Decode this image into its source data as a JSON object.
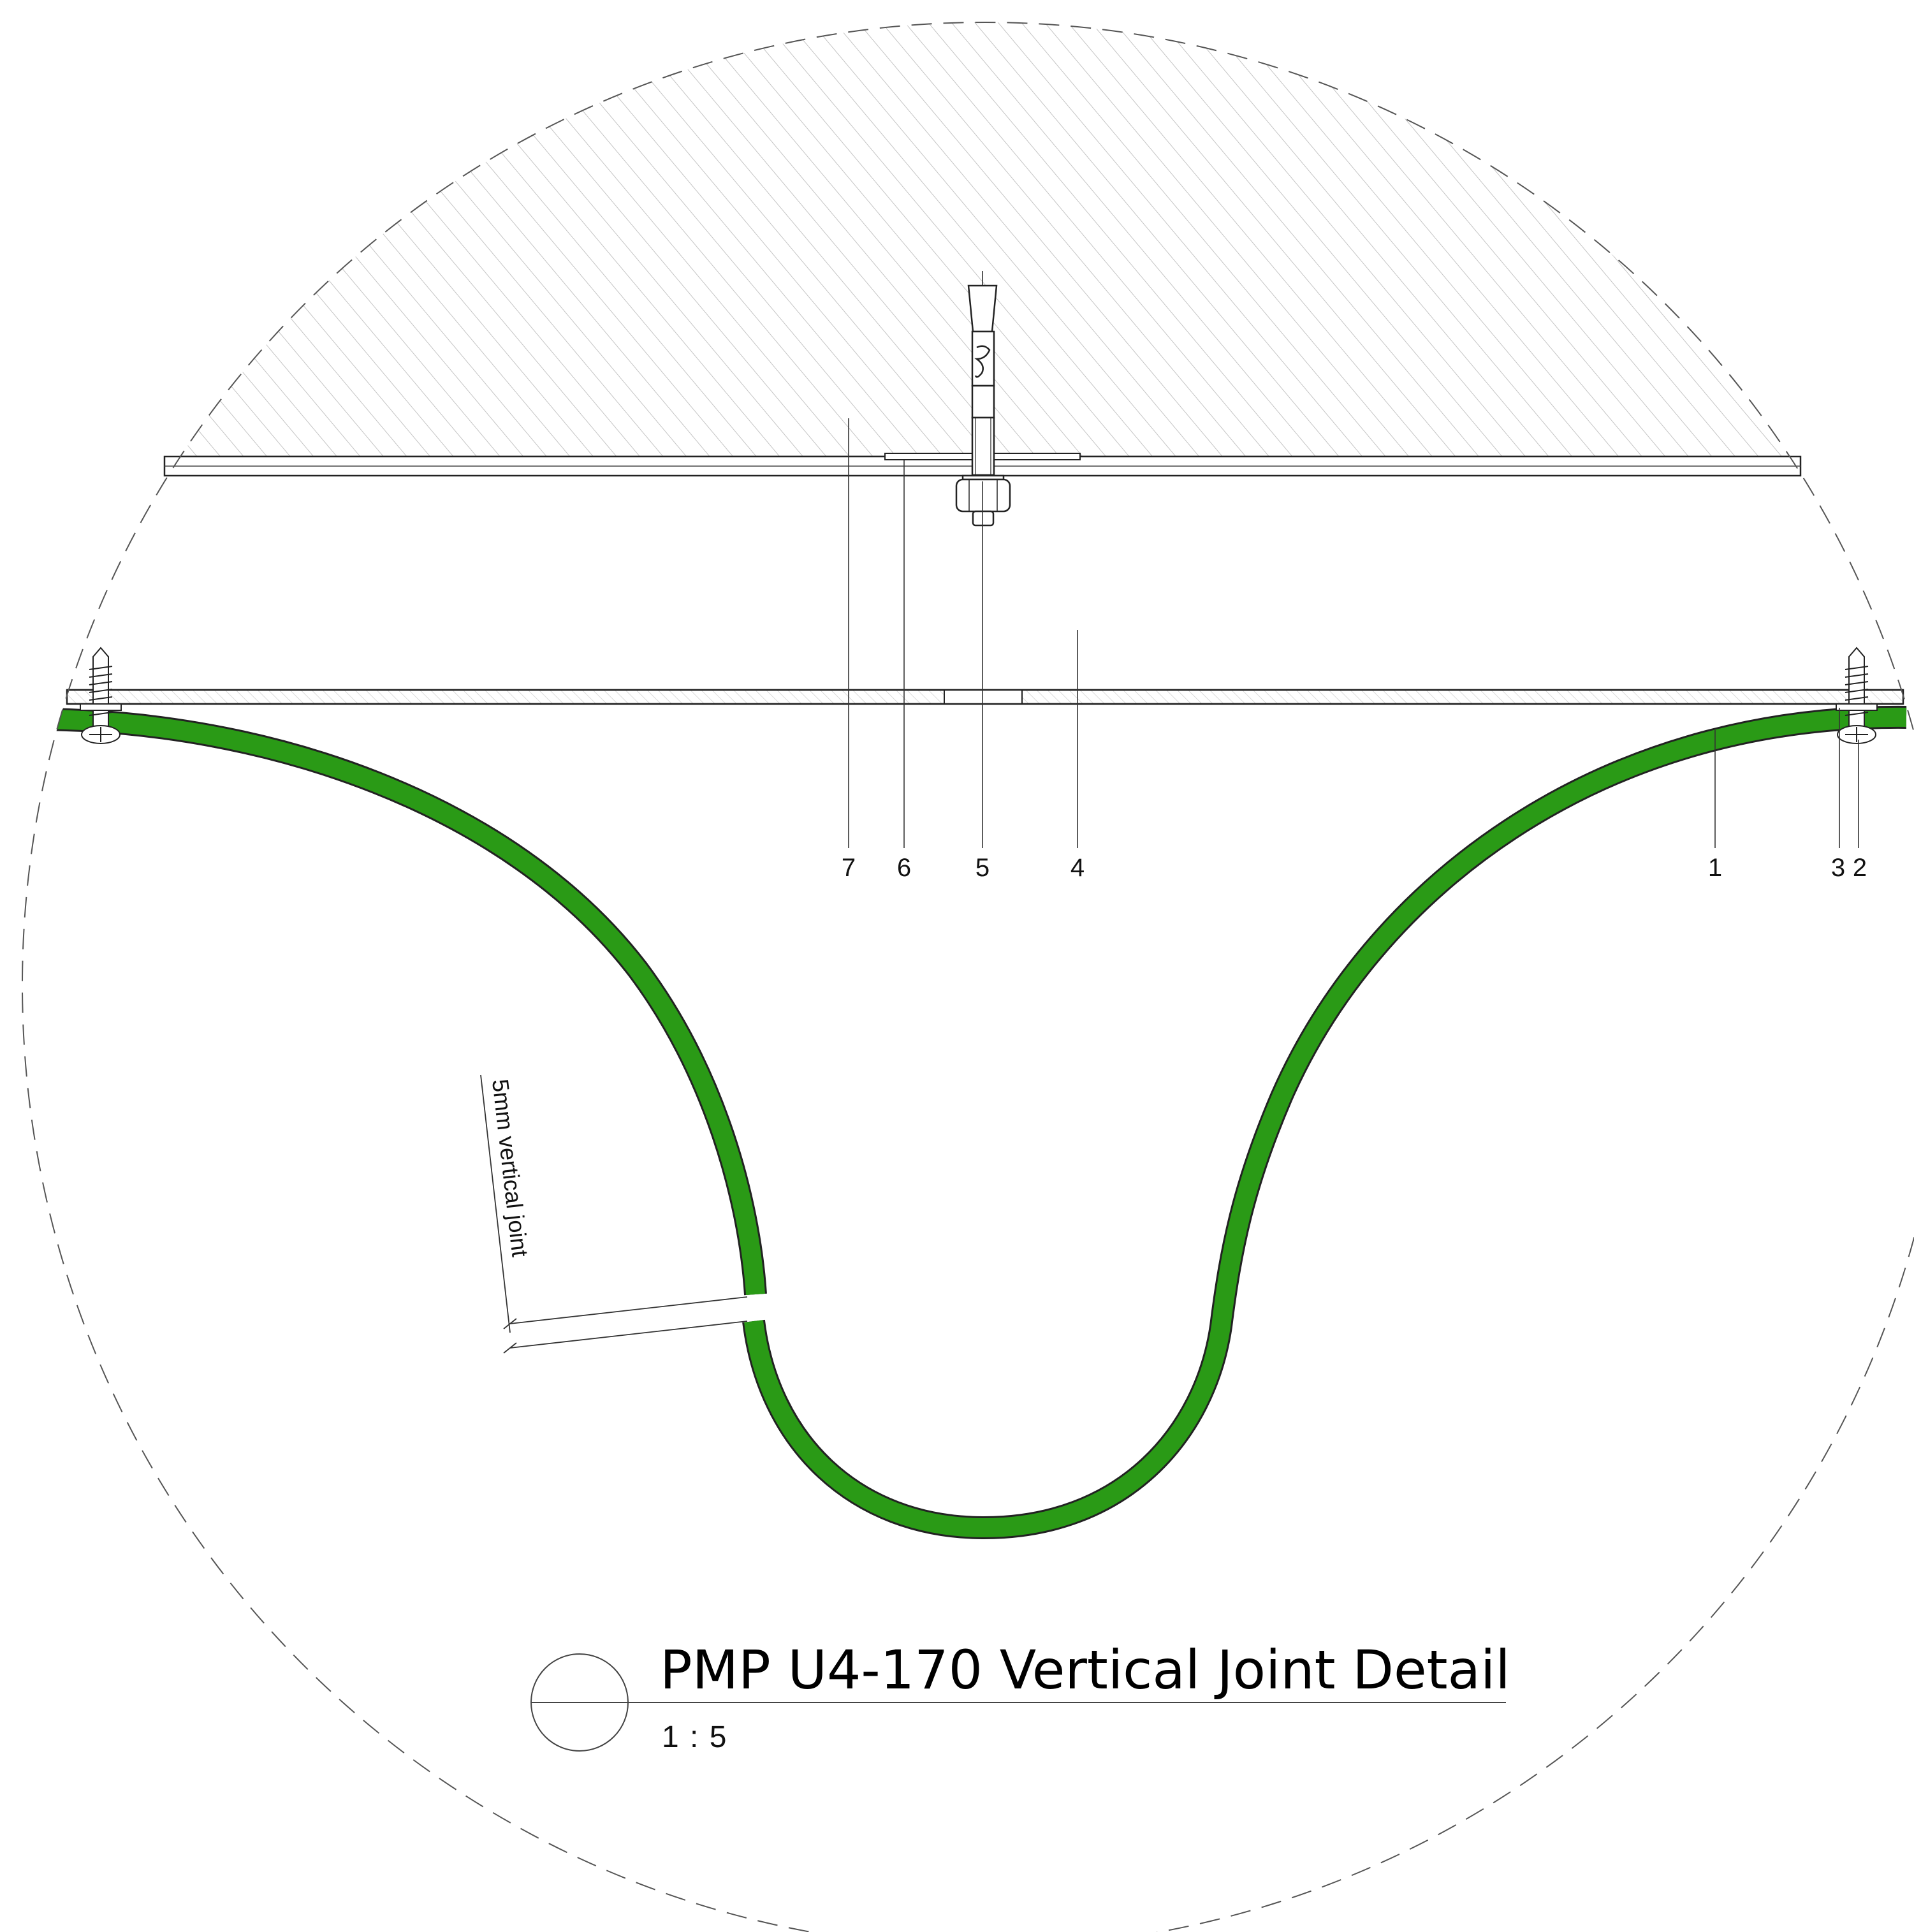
{
  "title": "PMP U4-170 Vertical Joint Detail",
  "scale": "1 : 5",
  "joint_note": "5mm vertical joint",
  "callouts": [
    "7",
    "6",
    "5",
    "4",
    "1",
    "3",
    "2"
  ],
  "colors": {
    "panel": "#2a9a16",
    "line": "#222222",
    "hatch": "#c8c8c8",
    "boundary": "#555555"
  }
}
